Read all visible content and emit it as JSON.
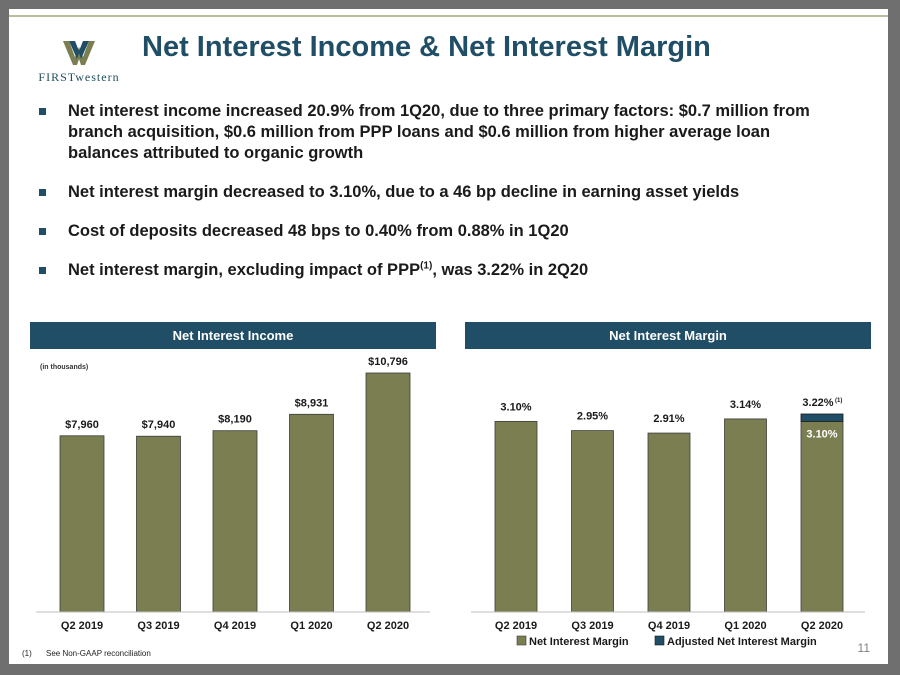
{
  "header": {
    "title": "Net Interest Income & Net Interest Margin",
    "logo_text_bold": "FIRST",
    "logo_text_rest": "western"
  },
  "bullets": [
    {
      "text": "Net interest income increased 20.9% from 1Q20, due to three primary factors: $0.7 million from branch acquisition, $0.6 million from PPP loans and $0.6 million from higher average loan balances attributed to organic growth"
    },
    {
      "text": "Net interest margin decreased to 3.10%, due to a 46 bp decline in earning asset yields"
    },
    {
      "text": "Cost of deposits decreased 48 bps to 0.40% from 0.88% in 1Q20"
    },
    {
      "text_before": "Net interest margin, excluding impact of PPP",
      "sup": "(1)",
      "text_after": ", was 3.22% in 2Q20"
    }
  ],
  "footnote": {
    "num": "(1)",
    "text": "See Non-GAAP reconciliation"
  },
  "page_number": "11",
  "colors": {
    "bar": "#7a7e51",
    "adjusted": "#1f4e66",
    "banner": "#1f4e66"
  },
  "chart_data": [
    {
      "type": "bar",
      "title": "Net Interest Income",
      "unit_note": "(in thousands)",
      "categories": [
        "Q2 2019",
        "Q3 2019",
        "Q4 2019",
        "Q1 2020",
        "Q2 2020"
      ],
      "values": [
        7960,
        7940,
        8190,
        8931,
        10796
      ],
      "labels": [
        "$7,960",
        "$7,940",
        "$8,190",
        "$8,931",
        "$10,796"
      ]
    },
    {
      "type": "bar",
      "title": "Net Interest Margin",
      "categories": [
        "Q2 2019",
        "Q3 2019",
        "Q4 2019",
        "Q1 2020",
        "Q2 2020"
      ],
      "series": [
        {
          "name": "Net Interest Margin",
          "values": [
            3.1,
            2.95,
            2.91,
            3.14,
            3.1
          ],
          "labels": [
            "3.10%",
            "2.95%",
            "2.91%",
            "3.14%",
            "3.10%"
          ]
        },
        {
          "name": "Adjusted Net Interest Margin",
          "values": [
            null,
            null,
            null,
            null,
            0.12
          ]
        }
      ],
      "adjusted_total_label": "3.22%",
      "adjusted_total_sup": "(1)"
    }
  ]
}
